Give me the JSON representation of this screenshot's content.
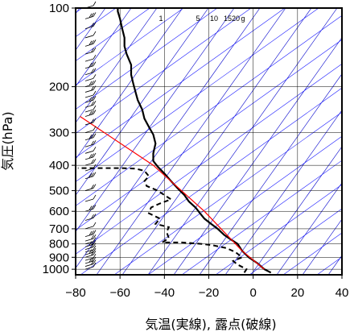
{
  "chart_data": {
    "type": "line",
    "title": "",
    "xlabel": "気温(実線), 露点(破線)",
    "ylabel": "気圧(hPa)",
    "xlim": [
      -80,
      40
    ],
    "ylim": [
      1050,
      100
    ],
    "y_scale": "log",
    "x_ticks": [
      -80,
      -60,
      -40,
      -20,
      0,
      20,
      40
    ],
    "x_tick_labels": [
      "−80",
      "−60",
      "−40",
      "−20",
      "0",
      "20",
      "40"
    ],
    "y_ticks": [
      100,
      200,
      300,
      400,
      500,
      600,
      700,
      800,
      900,
      1000
    ],
    "y_tick_labels": [
      "100",
      "200",
      "300",
      "400",
      "500",
      "600",
      "700",
      "800",
      "900",
      "1000"
    ],
    "mixing_ratio_labels": [
      "1",
      "5",
      "10",
      "15",
      "20",
      "g"
    ],
    "grid": true,
    "colors": {
      "temperature": "#000000",
      "dewpoint": "#000000",
      "isotherm": "#0000cc",
      "dry_adiabat": "#1a1aff",
      "parcel": "#ff0000",
      "frame": "#000000",
      "wind_barb": "#000000"
    },
    "series": [
      {
        "name": "気温",
        "style": "solid",
        "points": [
          [
            8,
            1030
          ],
          [
            5,
            1000
          ],
          [
            2,
            950
          ],
          [
            -2,
            900
          ],
          [
            -5,
            850
          ],
          [
            -7,
            800
          ],
          [
            -10,
            770
          ],
          [
            -13,
            740
          ],
          [
            -16,
            700
          ],
          [
            -19,
            670
          ],
          [
            -22,
            640
          ],
          [
            -24,
            610
          ],
          [
            -26,
            580
          ],
          [
            -29,
            550
          ],
          [
            -31,
            520
          ],
          [
            -34,
            490
          ],
          [
            -37,
            460
          ],
          [
            -40,
            430
          ],
          [
            -43,
            405
          ],
          [
            -45,
            385
          ],
          [
            -45,
            360
          ],
          [
            -44,
            330
          ],
          [
            -45,
            305
          ],
          [
            -47,
            285
          ],
          [
            -49,
            265
          ],
          [
            -50,
            245
          ],
          [
            -52,
            225
          ],
          [
            -53,
            210
          ],
          [
            -54,
            195
          ],
          [
            -55,
            180
          ],
          [
            -55,
            165
          ],
          [
            -57,
            150
          ],
          [
            -58,
            140
          ],
          [
            -58,
            130
          ],
          [
            -59,
            120
          ],
          [
            -60,
            110
          ],
          [
            -61,
            103
          ],
          [
            -61,
            100
          ]
        ]
      },
      {
        "name": "露点",
        "style": "dashed",
        "points": [
          [
            -4,
            1030
          ],
          [
            -3,
            1000
          ],
          [
            -7,
            960
          ],
          [
            -9,
            930
          ],
          [
            -5,
            900
          ],
          [
            -8,
            860
          ],
          [
            -12,
            830
          ],
          [
            -18,
            810
          ],
          [
            -23,
            800
          ],
          [
            -32,
            790
          ],
          [
            -41,
            790
          ],
          [
            -38,
            760
          ],
          [
            -39,
            720
          ],
          [
            -38,
            690
          ],
          [
            -44,
            670
          ],
          [
            -42,
            640
          ],
          [
            -47,
            610
          ],
          [
            -46,
            580
          ],
          [
            -42,
            560
          ],
          [
            -37,
            540
          ],
          [
            -40,
            520
          ],
          [
            -43,
            500
          ],
          [
            -48,
            480
          ],
          [
            -49,
            460
          ],
          [
            -47,
            440
          ],
          [
            -49,
            420
          ],
          [
            -53,
            412
          ],
          [
            -60,
            410
          ],
          [
            -70,
            410
          ],
          [
            -79,
            410
          ]
        ]
      },
      {
        "name": "",
        "style": "solid-red",
        "points": [
          [
            5,
            1000
          ],
          [
            -5,
            850
          ],
          [
            -22,
            600
          ],
          [
            -45,
            400
          ],
          [
            -78,
            260
          ]
        ]
      }
    ],
    "wind_levels_hPa": [
      1000,
      975,
      950,
      925,
      900,
      880,
      860,
      840,
      820,
      800,
      780,
      750,
      700,
      650,
      600,
      550,
      500,
      450,
      420,
      400,
      380,
      360,
      340,
      320,
      300,
      280,
      260,
      250,
      240,
      230,
      220,
      210,
      200,
      190,
      180,
      170,
      160,
      150,
      140,
      130,
      120,
      110,
      100
    ]
  }
}
